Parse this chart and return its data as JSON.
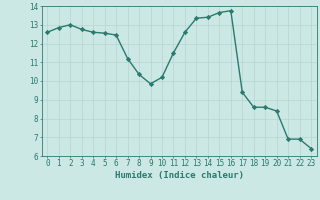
{
  "x": [
    0,
    1,
    2,
    3,
    4,
    5,
    6,
    7,
    8,
    9,
    10,
    11,
    12,
    13,
    14,
    15,
    16,
    17,
    18,
    19,
    20,
    21,
    22,
    23
  ],
  "y": [
    12.6,
    12.85,
    13.0,
    12.75,
    12.6,
    12.55,
    12.45,
    11.2,
    10.35,
    9.85,
    10.2,
    11.5,
    12.6,
    13.35,
    13.4,
    13.65,
    13.75,
    9.4,
    8.6,
    8.6,
    8.4,
    6.9,
    6.9,
    6.4
  ],
  "line_color": "#2a7a6e",
  "marker": "D",
  "marker_size": 2.2,
  "bg_color": "#cce8e5",
  "grid_color": "#b8d4d0",
  "xlim": [
    -0.5,
    23.5
  ],
  "ylim": [
    6,
    14
  ],
  "yticks": [
    6,
    7,
    8,
    9,
    10,
    11,
    12,
    13,
    14
  ],
  "xticks": [
    0,
    1,
    2,
    3,
    4,
    5,
    6,
    7,
    8,
    9,
    10,
    11,
    12,
    13,
    14,
    15,
    16,
    17,
    18,
    19,
    20,
    21,
    22,
    23
  ],
  "xlabel": "Humidex (Indice chaleur)",
  "xlabel_fontsize": 6.5,
  "tick_fontsize": 5.5,
  "line_width": 1.0
}
